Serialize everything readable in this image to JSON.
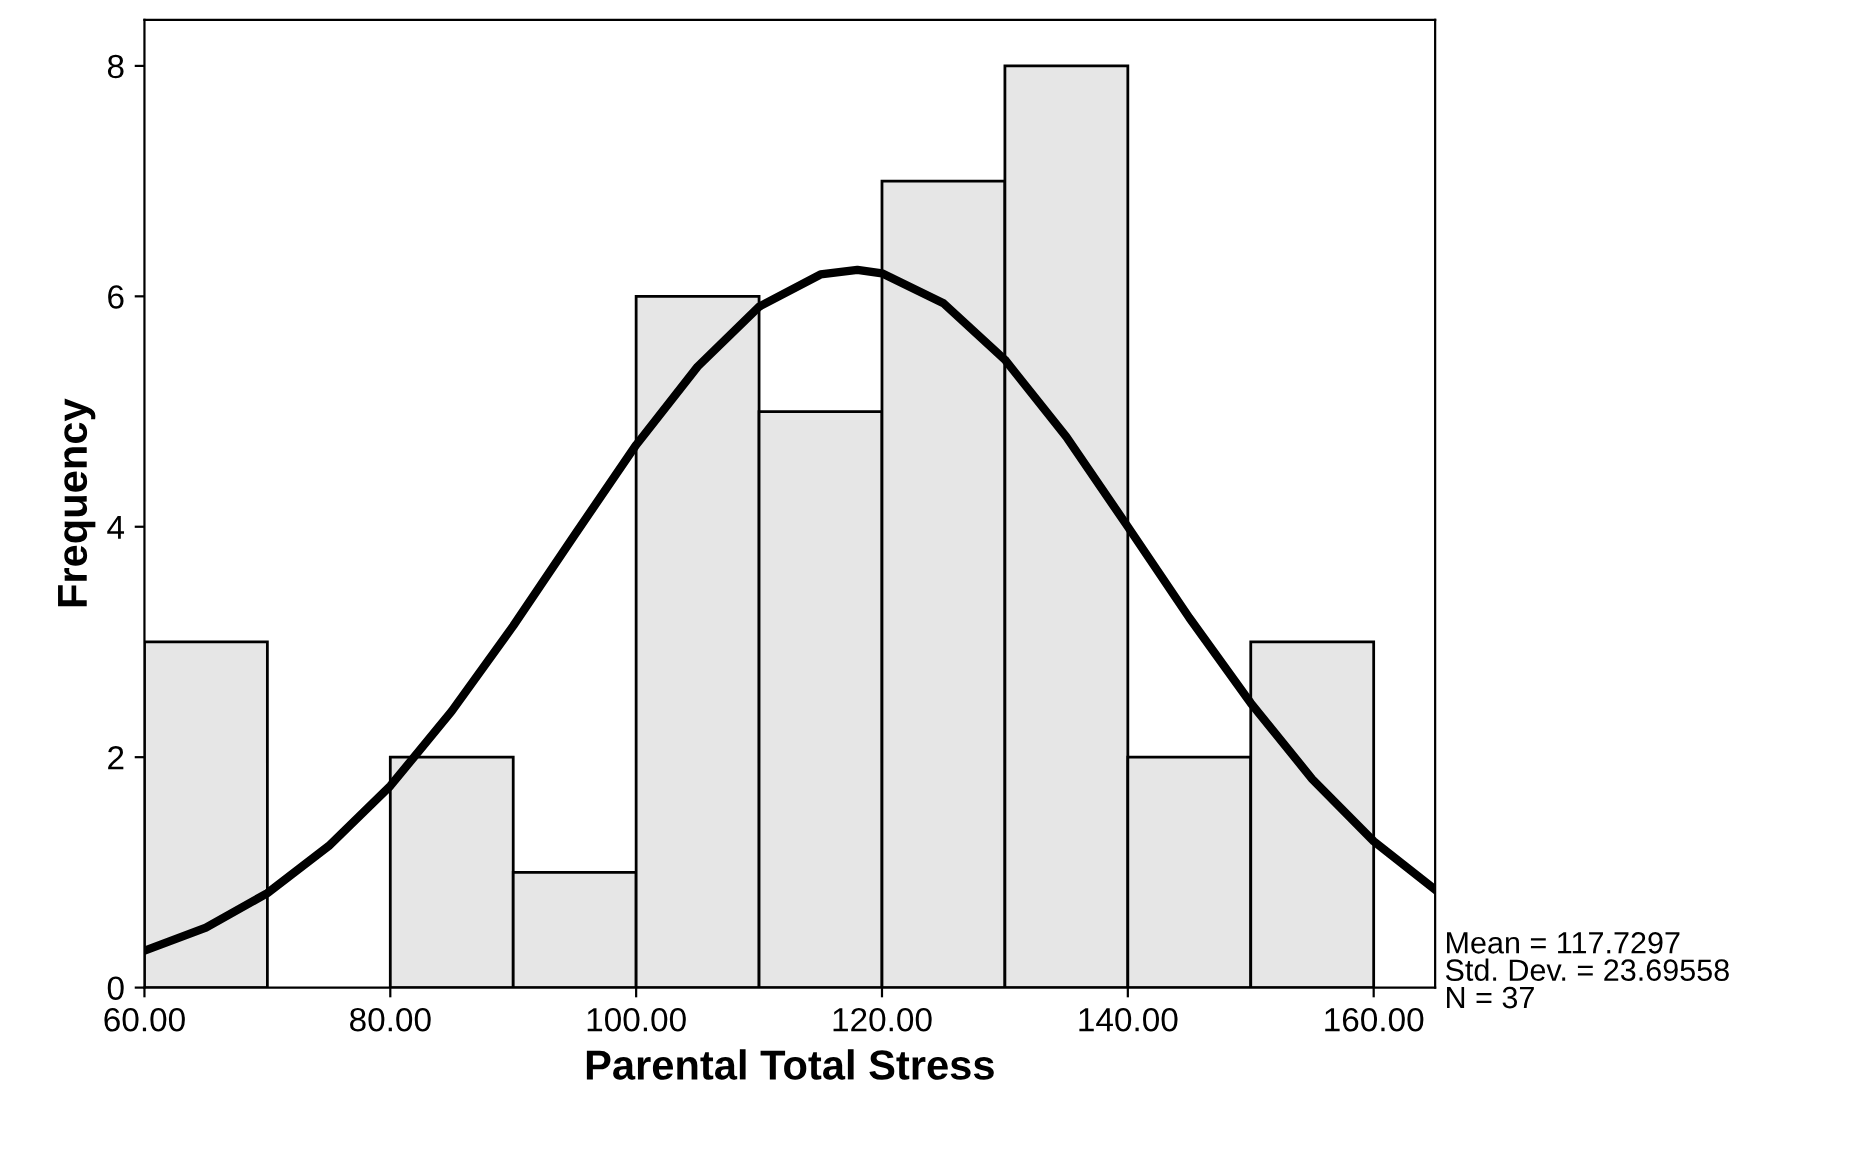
{
  "chart_data": {
    "type": "histogram",
    "xlabel": "Parental Total Stress",
    "ylabel": "Frequency",
    "bins": [
      60,
      70,
      80,
      90,
      100,
      110,
      120,
      130,
      140,
      150,
      160
    ],
    "values": [
      3,
      0,
      2,
      1,
      6,
      5,
      7,
      8,
      2,
      3
    ],
    "color": "#e6e6e6",
    "series": [
      {
        "type": "line",
        "color": "#000000",
        "x": [
          60,
          65,
          70,
          75,
          80,
          85,
          90,
          95,
          100,
          105,
          110,
          115,
          118,
          120,
          125,
          130,
          135,
          140,
          145,
          150,
          155,
          160,
          165
        ],
        "values": [
          0.32,
          0.52,
          0.82,
          1.23,
          1.75,
          2.4,
          3.14,
          3.93,
          4.71,
          5.39,
          5.91,
          6.19,
          6.23,
          6.2,
          5.94,
          5.45,
          4.78,
          4.0,
          3.21,
          2.47,
          1.81,
          1.27,
          0.85
        ]
      }
    ],
    "xlim": [
      60,
      165
    ],
    "ylim": [
      0,
      8.4
    ],
    "xticks": [
      {
        "value": 60,
        "label": "60.00"
      },
      {
        "value": 80,
        "label": "80.00"
      },
      {
        "value": 100,
        "label": "100.00"
      },
      {
        "value": 120,
        "label": "120.00"
      },
      {
        "value": 140,
        "label": "140.00"
      },
      {
        "value": 160,
        "label": "160.00"
      }
    ],
    "yticks": [
      0,
      2,
      4,
      6,
      8
    ],
    "annotations": [
      "Mean = 117.7297\nStd. Dev. = 23.69558\nN = 37"
    ],
    "grid": false,
    "legend": false
  }
}
